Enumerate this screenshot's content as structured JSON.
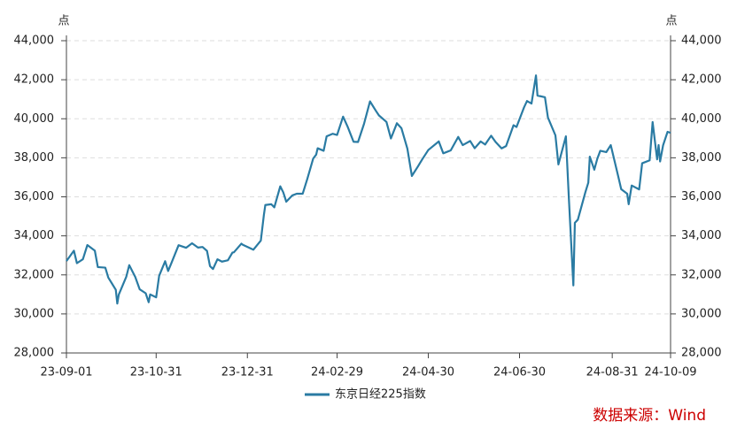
{
  "chart_data": {
    "type": "line",
    "y_unit_label": "点",
    "y2_unit_label": "点",
    "source": "数据来源：Wind",
    "x": [
      "23-09-01",
      "23-09-06",
      "23-09-08",
      "23-09-12",
      "23-09-15",
      "23-09-20",
      "23-09-22",
      "23-09-27",
      "23-09-29",
      "23-10-04",
      "23-10-05",
      "23-10-06",
      "23-10-11",
      "23-10-13",
      "23-10-17",
      "23-10-20",
      "23-10-24",
      "23-10-26",
      "23-10-27",
      "23-10-31",
      "23-11-02",
      "23-11-06",
      "23-11-08",
      "23-11-10",
      "23-11-15",
      "23-11-20",
      "23-11-24",
      "23-11-28",
      "23-12-01",
      "23-12-04",
      "23-12-06",
      "23-12-08",
      "23-12-11",
      "23-12-14",
      "23-12-18",
      "23-12-21",
      "23-12-22",
      "23-12-27",
      "23-12-28",
      "24-01-04",
      "24-01-09",
      "24-01-11",
      "24-01-12",
      "24-01-16",
      "24-01-18",
      "24-01-22",
      "24-01-24",
      "24-01-26",
      "24-01-30",
      "24-02-02",
      "24-02-06",
      "24-02-09",
      "24-02-13",
      "24-02-15",
      "24-02-16",
      "24-02-20",
      "24-02-22",
      "24-02-26",
      "24-02-29",
      "24-03-04",
      "24-03-07",
      "24-03-11",
      "24-03-14",
      "24-03-18",
      "24-03-22",
      "24-03-26",
      "24-03-28",
      "24-04-02",
      "24-04-05",
      "24-04-09",
      "24-04-12",
      "24-04-16",
      "24-04-19",
      "24-04-23",
      "24-04-26",
      "24-04-30",
      "24-05-07",
      "24-05-10",
      "24-05-15",
      "24-05-20",
      "24-05-23",
      "24-05-28",
      "24-05-31",
      "24-06-04",
      "24-06-07",
      "24-06-11",
      "24-06-14",
      "24-06-18",
      "24-06-21",
      "24-06-26",
      "24-06-28",
      "24-07-03",
      "24-07-05",
      "24-07-08",
      "24-07-11",
      "24-07-12",
      "24-07-17",
      "24-07-19",
      "24-07-24",
      "24-07-26",
      "24-07-31",
      "24-08-02",
      "24-08-05",
      "24-08-06",
      "24-08-08",
      "24-08-13",
      "24-08-15",
      "24-08-16",
      "24-08-19",
      "24-08-21",
      "24-08-23",
      "24-08-27",
      "24-08-30",
      "24-09-04",
      "24-09-06",
      "24-09-10",
      "24-09-11",
      "24-09-13",
      "24-09-18",
      "24-09-20",
      "24-09-25",
      "24-09-27",
      "24-09-30",
      "24-10-01",
      "24-10-02",
      "24-10-04",
      "24-10-07",
      "24-10-09"
    ],
    "series": [
      {
        "name": "东京日经225指数",
        "color": "#2a7ba3",
        "values": [
          32710,
          33240,
          32600,
          32800,
          33530,
          33240,
          32400,
          32370,
          31860,
          31240,
          30530,
          30990,
          31900,
          32500,
          31900,
          31260,
          31060,
          30600,
          31000,
          30850,
          31950,
          32700,
          32200,
          32570,
          33520,
          33390,
          33620,
          33400,
          33430,
          33230,
          32450,
          32300,
          32800,
          32680,
          32750,
          33140,
          33160,
          33600,
          33540,
          33290,
          33760,
          35050,
          35580,
          35620,
          35460,
          36540,
          36230,
          35750,
          36070,
          36160,
          36160,
          36900,
          37960,
          38160,
          38490,
          38360,
          39100,
          39230,
          39170,
          40110,
          39600,
          38820,
          38810,
          39740,
          40890,
          40400,
          40170,
          39840,
          38990,
          39770,
          39520,
          38470,
          37070,
          37550,
          37930,
          38400,
          38840,
          38230,
          38380,
          39070,
          38650,
          38860,
          38490,
          38840,
          38680,
          39130,
          38810,
          38480,
          38600,
          39670,
          39580,
          40580,
          40910,
          40780,
          42220,
          41190,
          41100,
          40060,
          39150,
          37660,
          39100,
          35910,
          31460,
          34670,
          34830,
          36230,
          36730,
          38060,
          37390,
          37950,
          38360,
          38290,
          38650,
          37050,
          36390,
          36160,
          35620,
          36580,
          36380,
          37720,
          37870,
          39830,
          37920,
          38650,
          37810,
          38640,
          39330,
          39280
        ]
      }
    ],
    "xticks": [
      "23-09-01",
      "23-10-31",
      "23-12-31",
      "24-02-29",
      "24-04-30",
      "24-06-30",
      "24-08-31",
      "24-10-09"
    ],
    "ylim": [
      28000,
      44000
    ],
    "yticks": [
      {
        "value": 28000,
        "label": "28,000"
      },
      {
        "value": 30000,
        "label": "30,000"
      },
      {
        "value": 32000,
        "label": "32,000"
      },
      {
        "value": 34000,
        "label": "34,000"
      },
      {
        "value": 36000,
        "label": "36,000"
      },
      {
        "value": 38000,
        "label": "38,000"
      },
      {
        "value": 40000,
        "label": "40,000"
      },
      {
        "value": 42000,
        "label": "42,000"
      },
      {
        "value": 44000,
        "label": "44,000"
      }
    ],
    "y2lim": [
      28000,
      44000
    ],
    "y2ticks": [
      {
        "value": 28000,
        "label": "28,000"
      },
      {
        "value": 30000,
        "label": "30,000"
      },
      {
        "value": 32000,
        "label": "32,000"
      },
      {
        "value": 34000,
        "label": "34,000"
      },
      {
        "value": 36000,
        "label": "36,000"
      },
      {
        "value": 38000,
        "label": "38,000"
      },
      {
        "value": 40000,
        "label": "40,000"
      },
      {
        "value": 42000,
        "label": "42,000"
      },
      {
        "value": 44000,
        "label": "44,000"
      }
    ],
    "grid": true
  }
}
